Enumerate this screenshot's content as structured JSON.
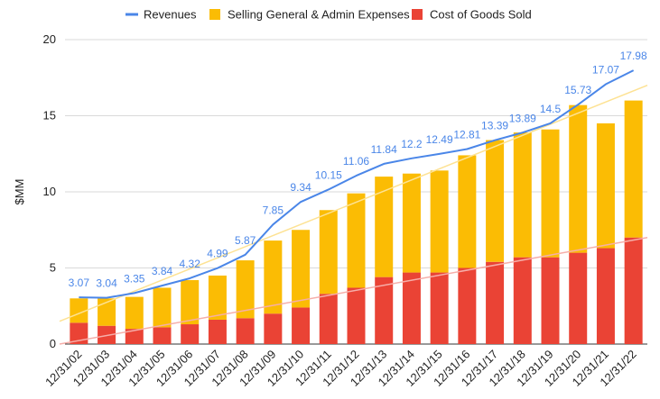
{
  "chart_data": {
    "type": "bar",
    "stacked": true,
    "title": "",
    "xlabel": "",
    "ylabel": "$MM",
    "ylim": [
      0,
      20
    ],
    "yticks": [
      0,
      5,
      10,
      15,
      20
    ],
    "grid": true,
    "legend_position": "top",
    "categories": [
      "12/31/02",
      "12/31/03",
      "12/31/04",
      "12/31/05",
      "12/31/06",
      "12/31/07",
      "12/31/08",
      "12/31/09",
      "12/31/10",
      "12/31/11",
      "12/31/12",
      "12/31/13",
      "12/31/14",
      "12/31/15",
      "12/31/16",
      "12/31/17",
      "12/31/18",
      "12/31/19",
      "12/31/20",
      "12/31/21",
      "12/31/22"
    ],
    "series": [
      {
        "name": "Revenues",
        "type": "line",
        "color": "#4a86e8",
        "values": [
          3.07,
          3.04,
          3.35,
          3.84,
          4.32,
          4.99,
          5.87,
          7.85,
          9.34,
          10.15,
          11.06,
          11.84,
          12.2,
          12.49,
          12.81,
          13.39,
          13.89,
          14.5,
          15.73,
          17.07,
          17.98
        ],
        "data_labels": [
          "3.07",
          "3.04",
          "3.35",
          "3.84",
          "4.32",
          "4.99",
          "5.87",
          "7.85",
          "9.34",
          "10.15",
          "11.06",
          "11.84",
          "12.2",
          "12.49",
          "12.81",
          "13.39",
          "13.89",
          "14.5",
          "15.73",
          "17.07",
          "17.98"
        ]
      },
      {
        "name": "Selling General & Admin Expenses",
        "type": "bar",
        "color": "#fbbc04",
        "values": [
          1.6,
          1.8,
          2.1,
          2.6,
          2.9,
          2.9,
          3.8,
          4.8,
          5.1,
          5.5,
          6.2,
          6.6,
          6.5,
          6.7,
          7.4,
          8.0,
          8.2,
          8.4,
          9.7,
          8.2,
          9.0
        ]
      },
      {
        "name": "Cost of Goods Sold",
        "type": "bar",
        "color": "#ea4335",
        "values": [
          1.4,
          1.2,
          1.0,
          1.1,
          1.3,
          1.6,
          1.7,
          2.0,
          2.4,
          3.3,
          3.7,
          4.4,
          4.7,
          4.7,
          5.0,
          5.4,
          5.7,
          5.7,
          6.0,
          6.3,
          7.0
        ]
      }
    ],
    "trendlines": [
      {
        "series": "Selling General & Admin Expenses",
        "color": "#fde293",
        "start": 1.5,
        "end": 17.0
      },
      {
        "series": "Cost of Goods Sold",
        "color": "#f6aea9",
        "start": 0.0,
        "end": 7.0
      }
    ]
  }
}
